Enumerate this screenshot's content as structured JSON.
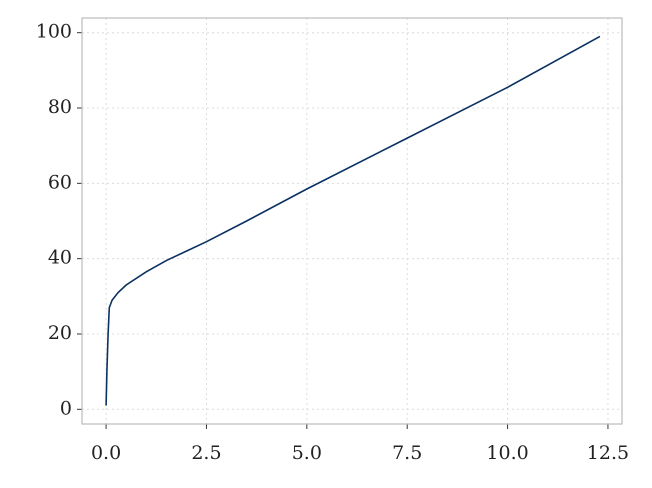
{
  "chart_data": {
    "type": "line",
    "x": [
      0,
      0.02,
      0.05,
      0.08,
      0.15,
      0.3,
      0.5,
      1,
      1.5,
      2,
      2.5,
      3.5,
      5,
      7.5,
      10,
      12.3
    ],
    "series": [
      {
        "color": "#0a3161",
        "values": [
          1,
          10,
          20,
          27,
          29,
          31,
          33,
          36.5,
          39.5,
          42,
          44.5,
          50,
          58.5,
          72,
          85.5,
          99
        ]
      }
    ],
    "xlim": [
      -0.6,
      12.85
    ],
    "ylim": [
      -3.9,
      103.9
    ],
    "xticks": [
      {
        "value": 0,
        "label": "0.0"
      },
      2.5,
      {
        "value": 5,
        "label": "5.0"
      },
      7.5,
      {
        "value": 10,
        "label": "10.0"
      },
      12.5
    ],
    "yticks": [
      0,
      20,
      40,
      60,
      80,
      100
    ],
    "grid": true
  }
}
